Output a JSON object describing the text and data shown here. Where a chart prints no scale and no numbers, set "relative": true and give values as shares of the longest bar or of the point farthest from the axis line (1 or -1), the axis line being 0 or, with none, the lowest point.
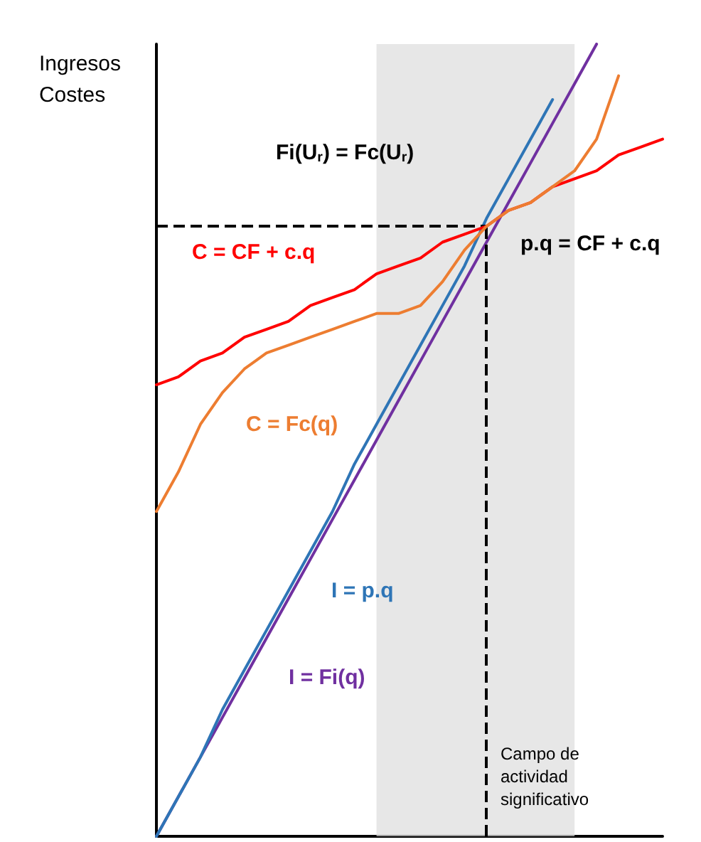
{
  "chart_data": {
    "type": "line",
    "relative": true,
    "ylabel": "Ingresos\nCostes",
    "marker": "none",
    "line_style": "solid",
    "categories": [
      null,
      null,
      null,
      null,
      null,
      null,
      null,
      null,
      null,
      null,
      null,
      null,
      null,
      null,
      null,
      null,
      null,
      null,
      null,
      null,
      null,
      null,
      null,
      null
    ],
    "series": [
      {
        "name": "I = Fi(q)",
        "color": "#7030a0",
        "values": [
          0,
          0.05,
          0.1,
          0.15,
          0.2,
          0.25,
          0.3,
          0.35,
          0.4,
          0.45,
          0.5,
          0.55,
          0.6,
          0.65,
          0.7,
          0.75,
          0.8,
          0.85,
          0.9,
          0.95,
          1,
          null,
          null,
          null
        ]
      },
      {
        "name": "I = p.q",
        "color": "#2e75b6",
        "values": [
          0,
          0.05,
          0.1,
          0.16,
          0.21,
          0.26,
          0.31,
          0.36,
          0.41,
          0.47,
          0.52,
          0.57,
          0.62,
          0.67,
          0.72,
          0.78,
          0.83,
          0.88,
          0.93,
          null,
          null,
          null,
          null,
          null
        ]
      },
      {
        "name": "C = CF + c.q",
        "color": "#ff0000",
        "values": [
          0.57,
          0.58,
          0.6,
          0.61,
          0.63,
          0.64,
          0.65,
          0.67,
          0.68,
          0.69,
          0.71,
          0.72,
          0.73,
          0.75,
          0.76,
          0.77,
          0.79,
          0.8,
          0.82,
          0.83,
          0.84,
          0.86,
          0.87,
          0.88
        ]
      },
      {
        "name": "C = Fc(q)",
        "color": "#ed7d31",
        "values": [
          0.41,
          0.46,
          0.52,
          0.56,
          0.59,
          0.61,
          0.62,
          0.63,
          0.64,
          0.65,
          0.66,
          0.66,
          0.67,
          0.7,
          0.74,
          0.77,
          0.79,
          0.8,
          0.82,
          0.84,
          0.88,
          0.96,
          null,
          null
        ]
      }
    ],
    "ref_lines": [
      {
        "axis": "y",
        "value": 0.77,
        "color": "#000000",
        "line_style": "dashed"
      }
    ],
    "annotations": [
      "Fi(U$_{r}$) = Fc(U$_{r}$)",
      "p.q = CF + c.q",
      "Campo de actividad significativo"
    ]
  }
}
